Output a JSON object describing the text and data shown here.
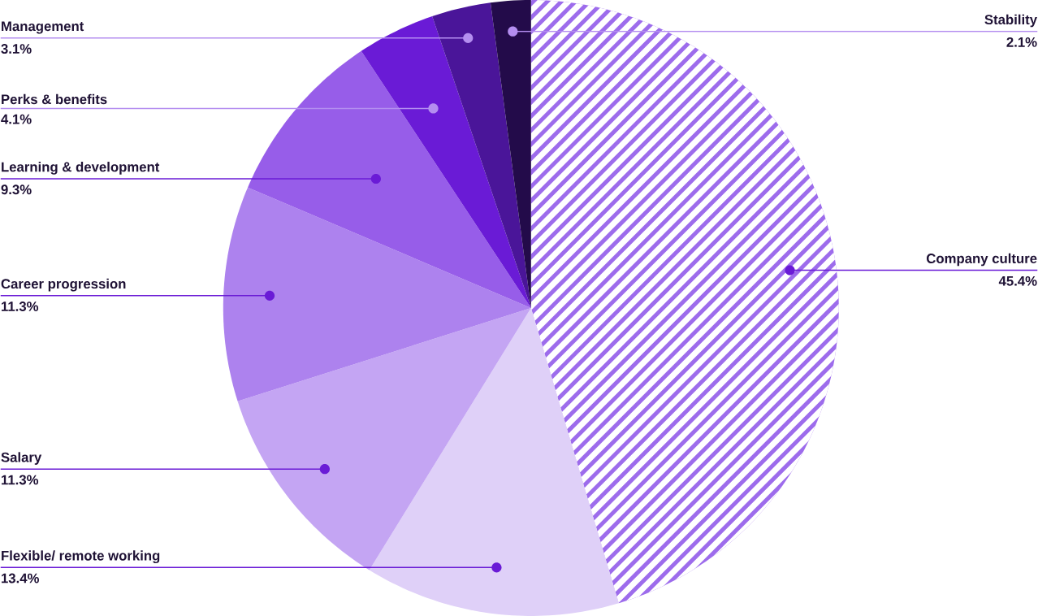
{
  "chart_data": {
    "type": "pie",
    "categories": [
      "Company culture",
      "Flexible/ remote working",
      "Salary",
      "Career progression",
      "Learning & development",
      "Perks & benefits",
      "Management",
      "Stability"
    ],
    "values": [
      45.4,
      13.4,
      11.3,
      11.3,
      9.3,
      4.1,
      3.1,
      2.1
    ],
    "colors": [
      "#9d6cec",
      "#dfd0f8",
      "#c4a5f3",
      "#ad82ee",
      "#975de9",
      "#6a1bd6",
      "#4a1599",
      "#230b4a"
    ],
    "value_labels": [
      "45.4%",
      "13.4%",
      "11.3%",
      "11.3%",
      "9.3%",
      "4.1%",
      "3.1%",
      "2.1%"
    ]
  }
}
